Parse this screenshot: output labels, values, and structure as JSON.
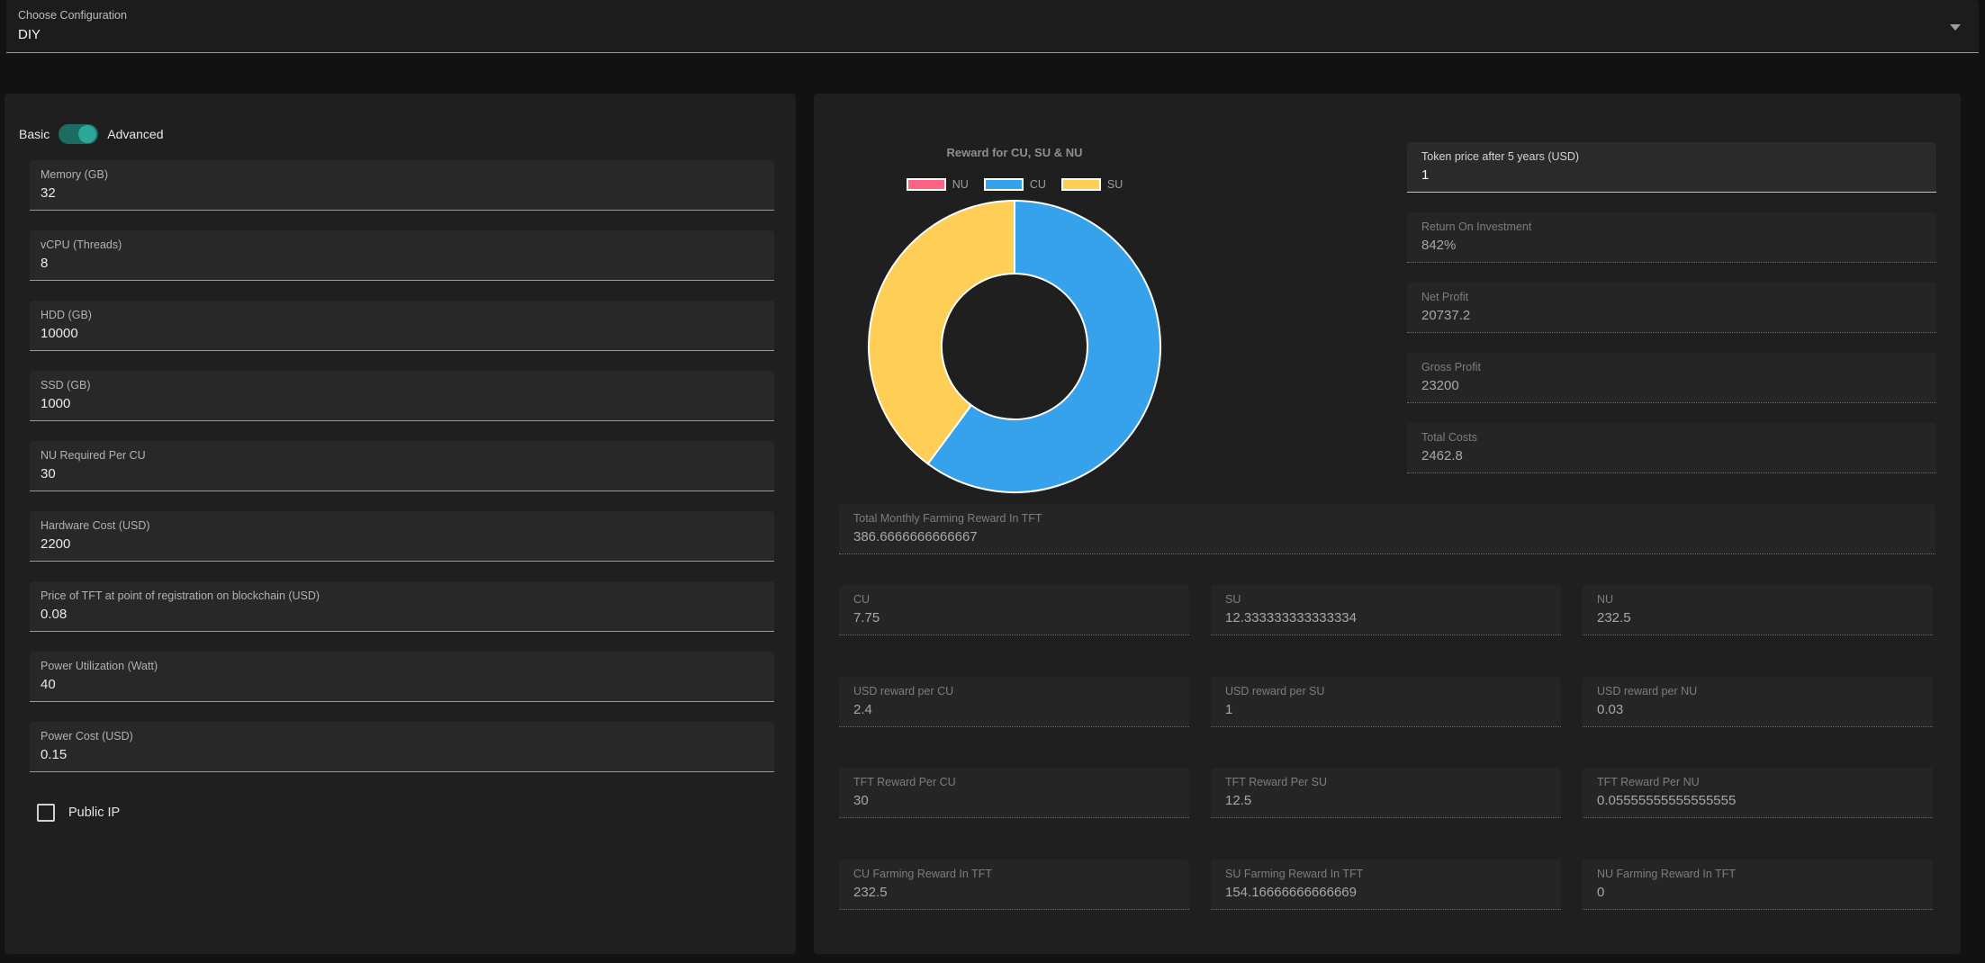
{
  "config_select": {
    "label": "Choose Configuration",
    "value": "DIY"
  },
  "toggle": {
    "off_label": "Basic",
    "on_label": "Advanced",
    "state": "on"
  },
  "colors": {
    "toggle_track": "#1d6c62",
    "toggle_thumb": "#2aa796",
    "panel_bg": "#1f1f1f",
    "page_bg": "#121212"
  },
  "inputs": [
    {
      "label": "Memory (GB)",
      "value": "32"
    },
    {
      "label": "vCPU (Threads)",
      "value": "8"
    },
    {
      "label": "HDD (GB)",
      "value": "10000"
    },
    {
      "label": "SSD (GB)",
      "value": "1000"
    },
    {
      "label": "NU Required Per CU",
      "value": "30"
    },
    {
      "label": "Hardware Cost (USD)",
      "value": "2200"
    },
    {
      "label": "Price of TFT at point of registration on blockchain (USD)",
      "value": "0.08"
    },
    {
      "label": "Power Utilization (Watt)",
      "value": "40"
    },
    {
      "label": "Power Cost (USD)",
      "value": "0.15"
    }
  ],
  "public_ip": {
    "label": "Public IP",
    "checked": false
  },
  "chart_data": {
    "type": "pie",
    "subtype": "doughnut",
    "title": "Reward for CU, SU & NU",
    "labels": [
      "NU",
      "CU",
      "SU"
    ],
    "values": [
      0,
      232.5,
      154.16666666666669
    ],
    "colors": [
      "#FF6384",
      "#36A2EB",
      "#FFCE56"
    ],
    "border_color": "#ffffff",
    "cutout_percent": 50,
    "legend_position": "top"
  },
  "results": {
    "token_price": {
      "label": "Token price after 5 years (USD)",
      "value": "1"
    },
    "summary": [
      {
        "label": "Return On Investment",
        "value": "842%"
      },
      {
        "label": "Net Profit",
        "value": "20737.2"
      },
      {
        "label": "Gross Profit",
        "value": "23200"
      },
      {
        "label": "Total Costs",
        "value": "2462.8"
      }
    ],
    "total_reward": {
      "label": "Total Monthly Farming Reward In TFT",
      "value": "386.6666666666667"
    },
    "grid": [
      [
        {
          "label": "CU",
          "value": "7.75"
        },
        {
          "label": "SU",
          "value": "12.333333333333334"
        },
        {
          "label": "NU",
          "value": "232.5"
        }
      ],
      [
        {
          "label": "USD reward per CU",
          "value": "2.4"
        },
        {
          "label": "USD reward per SU",
          "value": "1"
        },
        {
          "label": "USD reward per NU",
          "value": "0.03"
        }
      ],
      [
        {
          "label": "TFT Reward Per CU",
          "value": "30"
        },
        {
          "label": "TFT Reward Per SU",
          "value": "12.5"
        },
        {
          "label": "TFT Reward Per NU",
          "value": "0.05555555555555555"
        }
      ],
      [
        {
          "label": "CU Farming Reward In TFT",
          "value": "232.5"
        },
        {
          "label": "SU Farming Reward In TFT",
          "value": "154.16666666666669"
        },
        {
          "label": "NU Farming Reward In TFT",
          "value": "0"
        }
      ]
    ]
  }
}
